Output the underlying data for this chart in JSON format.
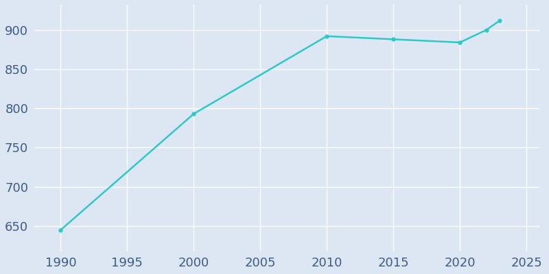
{
  "years": [
    1990,
    2000,
    2010,
    2015,
    2020,
    2022,
    2023
  ],
  "population": [
    645,
    793,
    892,
    888,
    884,
    900,
    912
  ],
  "line_color": "#2ec8c8",
  "marker": "o",
  "marker_size": 3.5,
  "line_width": 1.8,
  "bg_color": "#dce7f3",
  "plot_bg_color": "#dce7f3",
  "grid_color": "#ffffff",
  "tick_color": "#3d5a8a",
  "xlim": [
    1988,
    2026
  ],
  "ylim": [
    618,
    932
  ],
  "xticks": [
    1990,
    1995,
    2000,
    2005,
    2010,
    2015,
    2020,
    2025
  ],
  "yticks": [
    650,
    700,
    750,
    800,
    850,
    900
  ],
  "tick_fontsize": 13,
  "figsize": [
    8.0,
    4.0
  ],
  "dpi": 100
}
